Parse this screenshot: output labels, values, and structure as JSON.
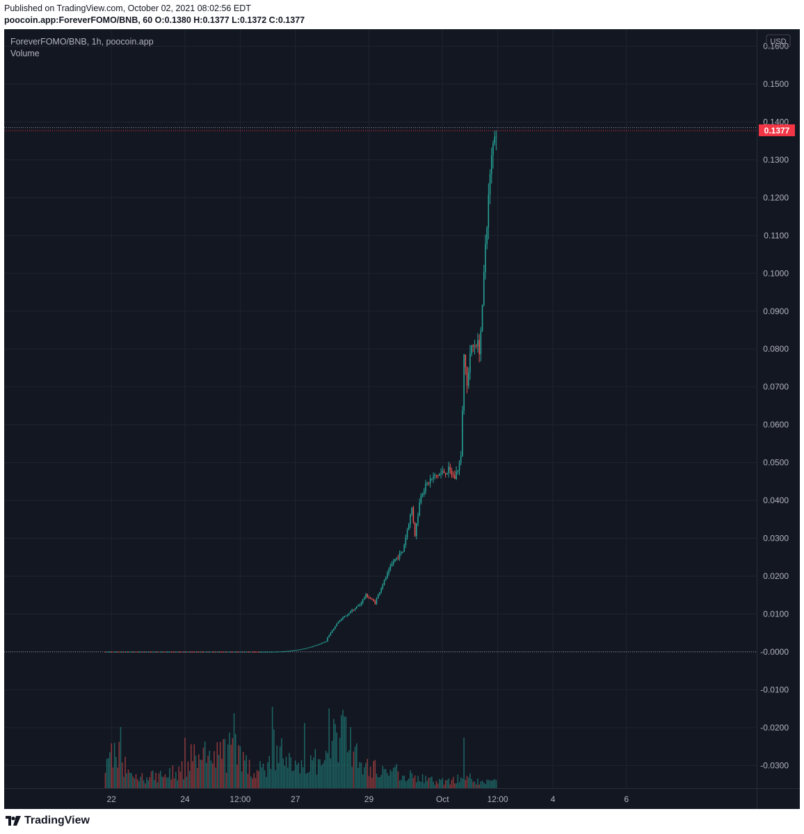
{
  "header": {
    "published": "Published on TradingView.com, October 02, 2021 08:02:56 EDT",
    "ohlc": "poocoin.app:ForeverFOMO/BNB, 60  O:0.1380  H:0.1377  L:0.1372  C:0.1377"
  },
  "legend": {
    "symbol": "ForeverFOMO/BNB, 1h, poocoin.app",
    "volume": "Volume"
  },
  "footer": {
    "brand": "TradingView"
  },
  "colors": {
    "background": "#131722",
    "up": "#26a69a",
    "down": "#ef5350",
    "grid": "#1f2430",
    "axis_text": "#b2b5be",
    "last_price": "#f23645"
  },
  "chart_data": {
    "type": "candlestick",
    "currency_label": "USD",
    "last_price": 0.1377,
    "last_price_label": "0.1377",
    "dotted_level": 0.1385,
    "zero_level": 0.0,
    "ylim": [
      -0.036,
      0.1645
    ],
    "yticks": [
      {
        "value": 0.16,
        "label": "0.1600"
      },
      {
        "value": 0.15,
        "label": "0.1500"
      },
      {
        "value": 0.14,
        "label": "0.1400"
      },
      {
        "value": 0.13,
        "label": "0.1300"
      },
      {
        "value": 0.12,
        "label": "0.1200"
      },
      {
        "value": 0.11,
        "label": "0.1100"
      },
      {
        "value": 0.1,
        "label": "0.1000"
      },
      {
        "value": 0.09,
        "label": "0.0900"
      },
      {
        "value": 0.08,
        "label": "0.0800"
      },
      {
        "value": 0.07,
        "label": "0.0700"
      },
      {
        "value": 0.06,
        "label": "0.0600"
      },
      {
        "value": 0.05,
        "label": "0.0500"
      },
      {
        "value": 0.04,
        "label": "0.0400"
      },
      {
        "value": 0.03,
        "label": "0.0300"
      },
      {
        "value": 0.02,
        "label": "0.0200"
      },
      {
        "value": 0.01,
        "label": "0.0100"
      },
      {
        "value": 0.0,
        "label": "-0.0000"
      },
      {
        "value": -0.01,
        "label": "-0.0100"
      },
      {
        "value": -0.02,
        "label": "-0.0200"
      },
      {
        "value": -0.03,
        "label": "-0.0300"
      }
    ],
    "xlim": [
      -46,
      445
    ],
    "x_unit": "hours since Sep 21 2021 00:00",
    "xticks": [
      {
        "x": 24,
        "label": "22"
      },
      {
        "x": 72,
        "label": "24"
      },
      {
        "x": 108,
        "label": "12:00"
      },
      {
        "x": 144,
        "label": "27"
      },
      {
        "x": 192,
        "label": "29"
      },
      {
        "x": 240,
        "label": "Oct"
      },
      {
        "x": 276,
        "label": "12:00"
      },
      {
        "x": 312,
        "label": "4"
      },
      {
        "x": 360,
        "label": "6"
      }
    ],
    "price_keypoints": [
      {
        "x": 20,
        "price": 0.0
      },
      {
        "x": 120,
        "price": 0.0
      },
      {
        "x": 150,
        "price": 0.0005
      },
      {
        "x": 162,
        "price": 0.002
      },
      {
        "x": 172,
        "price": 0.008
      },
      {
        "x": 178,
        "price": 0.01
      },
      {
        "x": 186,
        "price": 0.0125
      },
      {
        "x": 190,
        "price": 0.015
      },
      {
        "x": 196,
        "price": 0.013
      },
      {
        "x": 200,
        "price": 0.017
      },
      {
        "x": 208,
        "price": 0.024
      },
      {
        "x": 214,
        "price": 0.0265
      },
      {
        "x": 220,
        "price": 0.038
      },
      {
        "x": 222,
        "price": 0.031
      },
      {
        "x": 226,
        "price": 0.042
      },
      {
        "x": 232,
        "price": 0.0455
      },
      {
        "x": 238,
        "price": 0.047
      },
      {
        "x": 244,
        "price": 0.048
      },
      {
        "x": 248,
        "price": 0.046
      },
      {
        "x": 252,
        "price": 0.051
      },
      {
        "x": 254,
        "price": 0.078
      },
      {
        "x": 256,
        "price": 0.07
      },
      {
        "x": 258,
        "price": 0.079
      },
      {
        "x": 262,
        "price": 0.082
      },
      {
        "x": 264,
        "price": 0.08
      },
      {
        "x": 266,
        "price": 0.09
      },
      {
        "x": 268,
        "price": 0.108
      },
      {
        "x": 270,
        "price": 0.12
      },
      {
        "x": 272,
        "price": 0.13
      },
      {
        "x": 274,
        "price": 0.1377
      }
    ],
    "volume_keypoints": [
      {
        "x": 21,
        "v": 0.35
      },
      {
        "x": 26,
        "v": 0.6
      },
      {
        "x": 32,
        "v": 0.35
      },
      {
        "x": 40,
        "v": 0.15
      },
      {
        "x": 60,
        "v": 0.2
      },
      {
        "x": 72,
        "v": 0.3
      },
      {
        "x": 78,
        "v": 0.5
      },
      {
        "x": 90,
        "v": 0.45
      },
      {
        "x": 100,
        "v": 0.55
      },
      {
        "x": 106,
        "v": 0.65
      },
      {
        "x": 116,
        "v": 0.2
      },
      {
        "x": 130,
        "v": 0.4
      },
      {
        "x": 136,
        "v": 0.6
      },
      {
        "x": 142,
        "v": 0.3
      },
      {
        "x": 154,
        "v": 0.45
      },
      {
        "x": 162,
        "v": 0.3
      },
      {
        "x": 170,
        "v": 0.75
      },
      {
        "x": 178,
        "v": 0.8
      },
      {
        "x": 186,
        "v": 0.35
      },
      {
        "x": 196,
        "v": 0.3
      },
      {
        "x": 210,
        "v": 0.25
      },
      {
        "x": 230,
        "v": 0.12
      },
      {
        "x": 244,
        "v": 0.1
      },
      {
        "x": 252,
        "v": 0.2
      },
      {
        "x": 258,
        "v": 0.15
      },
      {
        "x": 266,
        "v": 0.08
      },
      {
        "x": 274,
        "v": 0.1
      }
    ],
    "volume_spikes": [
      {
        "x": 24,
        "v": 0.55
      },
      {
        "x": 30,
        "v": 0.75
      },
      {
        "x": 72,
        "v": 0.62
      },
      {
        "x": 104,
        "v": 0.92
      },
      {
        "x": 129,
        "v": 1.0
      },
      {
        "x": 130,
        "v": 0.72
      },
      {
        "x": 150,
        "v": 0.8
      },
      {
        "x": 166,
        "v": 0.98
      },
      {
        "x": 169,
        "v": 0.85
      },
      {
        "x": 176,
        "v": 0.88
      },
      {
        "x": 184,
        "v": 0.55
      },
      {
        "x": 254,
        "v": 0.62
      }
    ]
  }
}
